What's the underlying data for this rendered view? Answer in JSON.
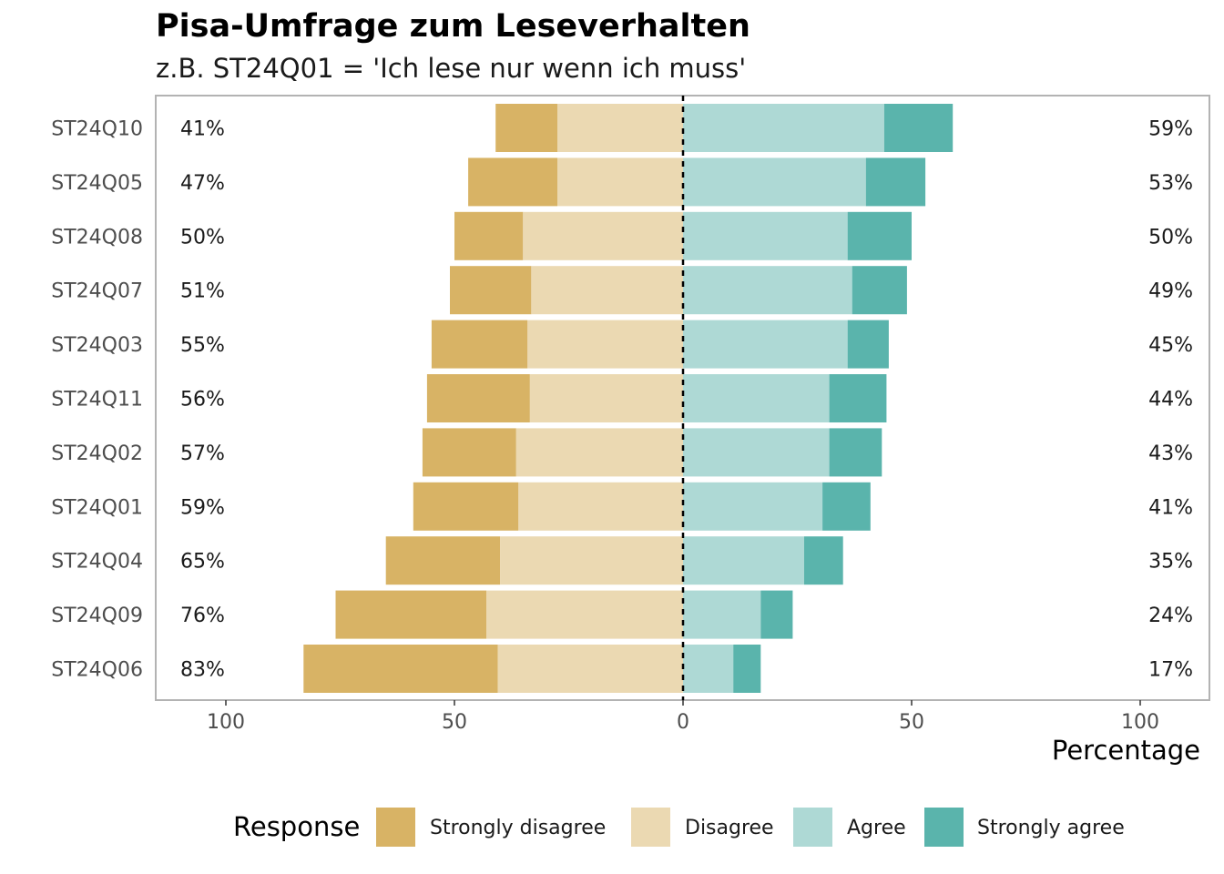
{
  "chart_data": {
    "type": "bar",
    "orientation": "horizontal",
    "stacked": "diverging",
    "title": "Pisa-Umfrage zum Leseverhalten",
    "subtitle": "z.B. ST24Q01 = 'Ich lese nur wenn ich muss'",
    "xlabel": "Percentage",
    "ylabel": "",
    "xlim": [
      -100,
      100
    ],
    "xticks": [
      -100,
      -50,
      0,
      50,
      100
    ],
    "xtick_labels": [
      "100",
      "50",
      "0",
      "50",
      "100"
    ],
    "grid": false,
    "legend": {
      "title": "Response",
      "position": "bottom",
      "entries": [
        "Strongly disagree",
        "Disagree",
        "Agree",
        "Strongly agree"
      ]
    },
    "colors": {
      "Strongly disagree": "#D8B365",
      "Disagree": "#EBD9B2",
      "Agree": "#AED9D5",
      "Strongly agree": "#5AB4AC"
    },
    "categories": [
      "ST24Q10",
      "ST24Q05",
      "ST24Q08",
      "ST24Q07",
      "ST24Q03",
      "ST24Q11",
      "ST24Q02",
      "ST24Q01",
      "ST24Q04",
      "ST24Q09",
      "ST24Q06"
    ],
    "series": [
      {
        "name": "Strongly disagree",
        "values": [
          13.5,
          19.5,
          15.0,
          17.8,
          21.0,
          22.5,
          20.5,
          23.0,
          25.0,
          33.0,
          42.5
        ]
      },
      {
        "name": "Disagree",
        "values": [
          27.5,
          27.5,
          35.0,
          33.2,
          34.0,
          33.5,
          36.5,
          36.0,
          40.0,
          43.0,
          40.5
        ]
      },
      {
        "name": "Agree",
        "values": [
          44.0,
          40.0,
          36.0,
          37.0,
          36.0,
          32.0,
          32.0,
          30.5,
          26.5,
          17.0,
          11.0
        ]
      },
      {
        "name": "Strongly agree",
        "values": [
          15.0,
          13.0,
          14.0,
          12.0,
          9.0,
          12.5,
          11.5,
          10.5,
          8.5,
          7.0,
          6.0
        ]
      }
    ],
    "left_labels": [
      "41%",
      "47%",
      "50%",
      "51%",
      "55%",
      "56%",
      "57%",
      "59%",
      "65%",
      "76%",
      "83%"
    ],
    "right_labels": [
      "59%",
      "53%",
      "50%",
      "49%",
      "45%",
      "44%",
      "43%",
      "41%",
      "35%",
      "24%",
      "17%"
    ]
  }
}
